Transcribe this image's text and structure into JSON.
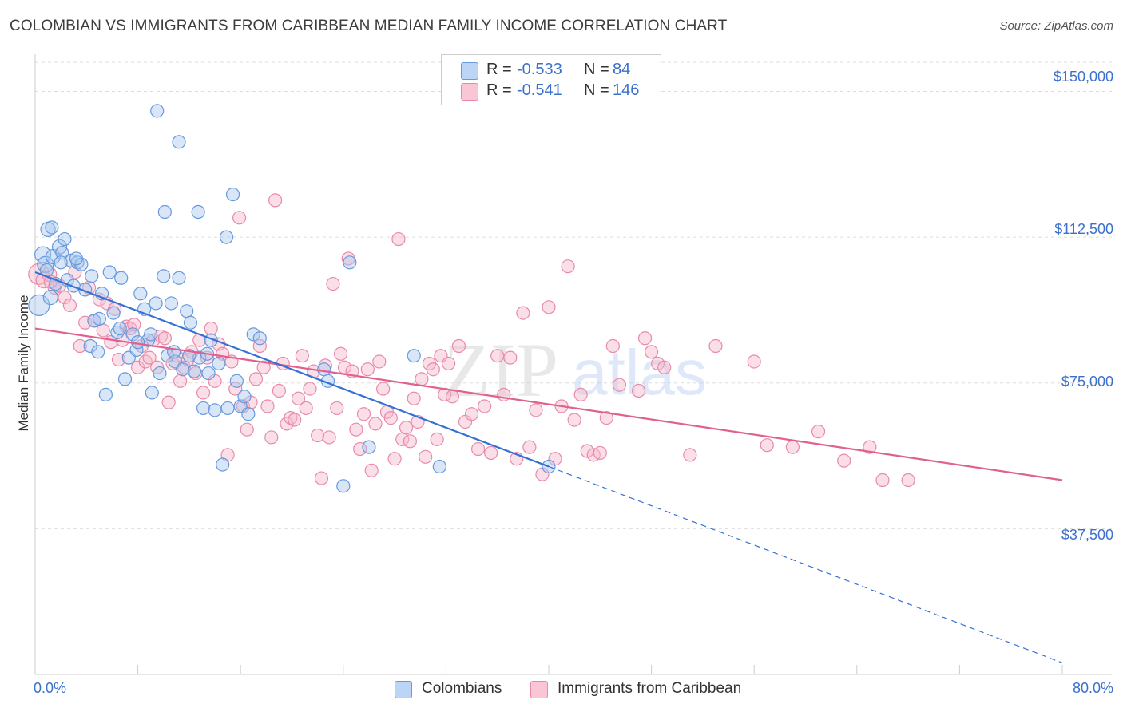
{
  "header": {
    "title": "COLOMBIAN VS IMMIGRANTS FROM CARIBBEAN MEDIAN FAMILY INCOME CORRELATION CHART",
    "source": "Source: ZipAtlas.com"
  },
  "legend": {
    "rows": [
      {
        "r_label": "R =",
        "r_value": "-0.533",
        "n_label": "N =",
        "n_value": "84"
      },
      {
        "r_label": "R =",
        "r_value": "-0.541",
        "n_label": "N =",
        "n_value": "146"
      }
    ]
  },
  "watermark": {
    "zip": "ZIP",
    "atlas": "atlas"
  },
  "colors": {
    "colombians_fill": "#a9c8f0",
    "colombians_stroke": "#6699dd",
    "colombians_line": "#3371d4",
    "caribbean_fill": "#f7b8cb",
    "caribbean_stroke": "#e88aa8",
    "caribbean_line": "#e06090",
    "axis_text": "#3b6fcc",
    "grid": "#dddddd"
  },
  "chart_data": {
    "type": "scatter",
    "title": "COLOMBIAN VS IMMIGRANTS FROM CARIBBEAN MEDIAN FAMILY INCOME CORRELATION CHART",
    "xlabel": "",
    "ylabel": "Median Family Income",
    "xlim": [
      0,
      80
    ],
    "ylim": [
      0,
      157500
    ],
    "x_tick_labels": [
      "0.0%",
      "80.0%"
    ],
    "y_ticks": [
      37500,
      75000,
      112500,
      150000
    ],
    "y_tick_labels": [
      "$37,500",
      "$75,000",
      "$112,500",
      "$150,000"
    ],
    "grid": true,
    "legend_position": "top-center",
    "series": [
      {
        "name": "Colombians",
        "r": -0.533,
        "n": 84,
        "trend": {
          "x0": 0,
          "y0": 103500,
          "x1": 40,
          "y1": 53500,
          "dashed_to_x": 80,
          "dashed_to_y": 3000
        },
        "points": [
          [
            0.3,
            95000,
            13
          ],
          [
            0.6,
            108000,
            10
          ],
          [
            0.8,
            105500,
            10
          ],
          [
            1.0,
            114500,
            9
          ],
          [
            1.2,
            97000,
            9
          ],
          [
            1.4,
            107500,
            9
          ],
          [
            1.6,
            100500,
            8
          ],
          [
            1.9,
            110000,
            9
          ],
          [
            2.1,
            108500,
            8
          ],
          [
            2.3,
            112000,
            8
          ],
          [
            2.5,
            101500,
            8
          ],
          [
            2.8,
            106500,
            8
          ],
          [
            3.0,
            100000,
            8
          ],
          [
            3.3,
            106000,
            8
          ],
          [
            3.6,
            105500,
            8
          ],
          [
            3.9,
            99000,
            8
          ],
          [
            4.3,
            84500,
            8
          ],
          [
            4.6,
            91000,
            8
          ],
          [
            4.9,
            83000,
            8
          ],
          [
            5.2,
            98000,
            8
          ],
          [
            5.5,
            72000,
            8
          ],
          [
            5.8,
            103500,
            8
          ],
          [
            6.1,
            93000,
            8
          ],
          [
            6.4,
            88000,
            8
          ],
          [
            6.7,
            102000,
            8
          ],
          [
            7.0,
            76000,
            8
          ],
          [
            7.3,
            81500,
            8
          ],
          [
            7.6,
            87500,
            8
          ],
          [
            7.9,
            83500,
            8
          ],
          [
            8.2,
            98000,
            8
          ],
          [
            8.5,
            94000,
            8
          ],
          [
            8.8,
            86000,
            8
          ],
          [
            9.1,
            72500,
            8
          ],
          [
            9.4,
            95500,
            8
          ],
          [
            9.7,
            77500,
            8
          ],
          [
            10.0,
            102500,
            8
          ],
          [
            10.3,
            82000,
            8
          ],
          [
            10.6,
            95500,
            8
          ],
          [
            10.9,
            80500,
            8
          ],
          [
            11.2,
            102000,
            8
          ],
          [
            11.5,
            78500,
            8
          ],
          [
            11.8,
            93500,
            8
          ],
          [
            12.1,
            90500,
            8
          ],
          [
            12.4,
            78000,
            8
          ],
          [
            12.8,
            81500,
            8
          ],
          [
            13.1,
            68500,
            8
          ],
          [
            13.4,
            82500,
            8
          ],
          [
            13.7,
            86000,
            8
          ],
          [
            14.0,
            68000,
            8
          ],
          [
            14.3,
            80000,
            8
          ],
          [
            14.6,
            54000,
            8
          ],
          [
            14.9,
            112500,
            8
          ],
          [
            9.5,
            145000,
            8
          ],
          [
            11.2,
            137000,
            8
          ],
          [
            10.1,
            119000,
            8
          ],
          [
            12.7,
            119000,
            8
          ],
          [
            15.4,
            123500,
            8
          ],
          [
            15.7,
            75500,
            8
          ],
          [
            16.0,
            69000,
            8
          ],
          [
            16.3,
            71500,
            8
          ],
          [
            16.6,
            67000,
            8
          ],
          [
            17.0,
            87500,
            8
          ],
          [
            17.5,
            86500,
            8
          ],
          [
            22.5,
            78500,
            8
          ],
          [
            22.8,
            75500,
            8
          ],
          [
            24.5,
            106000,
            8
          ],
          [
            24.0,
            48500,
            8
          ],
          [
            26.0,
            58500,
            8
          ],
          [
            29.5,
            82000,
            8
          ],
          [
            31.5,
            53500,
            8
          ],
          [
            2.0,
            106000,
            8
          ],
          [
            0.9,
            104000,
            8
          ],
          [
            1.3,
            115000,
            8
          ],
          [
            3.2,
            107000,
            8
          ],
          [
            4.4,
            102500,
            8
          ],
          [
            5.0,
            91500,
            8
          ],
          [
            6.6,
            89000,
            8
          ],
          [
            8.0,
            85500,
            8
          ],
          [
            9.0,
            87500,
            8
          ],
          [
            10.8,
            83000,
            8
          ],
          [
            12.0,
            82000,
            8
          ],
          [
            13.5,
            77500,
            8
          ],
          [
            15.0,
            68500,
            8
          ],
          [
            40.0,
            53500,
            8
          ]
        ]
      },
      {
        "name": "Immigrants from Caribbean",
        "r": -0.541,
        "n": 146,
        "trend": {
          "x0": 0,
          "y0": 89000,
          "x1": 80,
          "y1": 50000
        },
        "points": [
          [
            0.3,
            103000,
            13
          ],
          [
            0.7,
            101500,
            10
          ],
          [
            1.1,
            103000,
            9
          ],
          [
            1.5,
            99500,
            8
          ],
          [
            1.9,
            100000,
            8
          ],
          [
            2.3,
            97000,
            8
          ],
          [
            2.7,
            95000,
            8
          ],
          [
            3.1,
            103500,
            8
          ],
          [
            3.5,
            84500,
            8
          ],
          [
            3.9,
            90500,
            8
          ],
          [
            4.2,
            99500,
            8
          ],
          [
            4.6,
            91000,
            8
          ],
          [
            5.0,
            96500,
            8
          ],
          [
            5.3,
            88500,
            8
          ],
          [
            5.6,
            95500,
            8
          ],
          [
            5.9,
            85500,
            8
          ],
          [
            6.2,
            94000,
            8
          ],
          [
            6.5,
            81000,
            8
          ],
          [
            6.8,
            86000,
            8
          ],
          [
            7.1,
            89500,
            8
          ],
          [
            7.4,
            89000,
            8
          ],
          [
            7.7,
            90000,
            8
          ],
          [
            8.0,
            79000,
            8
          ],
          [
            8.3,
            84500,
            8
          ],
          [
            8.6,
            80500,
            8
          ],
          [
            8.9,
            81500,
            8
          ],
          [
            9.2,
            86000,
            8
          ],
          [
            9.5,
            79000,
            8
          ],
          [
            9.8,
            87000,
            8
          ],
          [
            10.1,
            86500,
            8
          ],
          [
            10.4,
            70000,
            8
          ],
          [
            10.7,
            80000,
            8
          ],
          [
            11.0,
            82000,
            8
          ],
          [
            11.3,
            75500,
            8
          ],
          [
            11.6,
            79000,
            8
          ],
          [
            11.9,
            81000,
            8
          ],
          [
            12.2,
            83000,
            8
          ],
          [
            12.5,
            77500,
            8
          ],
          [
            12.8,
            86000,
            8
          ],
          [
            13.1,
            72500,
            8
          ],
          [
            13.4,
            81500,
            8
          ],
          [
            13.7,
            89000,
            8
          ],
          [
            14.0,
            75500,
            8
          ],
          [
            14.3,
            85000,
            8
          ],
          [
            14.6,
            82500,
            8
          ],
          [
            15.0,
            56500,
            8
          ],
          [
            15.3,
            80500,
            8
          ],
          [
            15.6,
            73500,
            8
          ],
          [
            15.9,
            117500,
            8
          ],
          [
            16.2,
            69000,
            8
          ],
          [
            16.5,
            63000,
            8
          ],
          [
            16.8,
            70000,
            8
          ],
          [
            17.2,
            76000,
            8
          ],
          [
            17.5,
            84500,
            8
          ],
          [
            17.8,
            79000,
            8
          ],
          [
            18.1,
            69000,
            8
          ],
          [
            18.4,
            61000,
            8
          ],
          [
            18.7,
            122000,
            8
          ],
          [
            19.0,
            73000,
            8
          ],
          [
            19.3,
            80000,
            8
          ],
          [
            19.6,
            64500,
            8
          ],
          [
            19.9,
            66000,
            8
          ],
          [
            20.2,
            65500,
            8
          ],
          [
            20.5,
            71000,
            8
          ],
          [
            20.8,
            82000,
            8
          ],
          [
            21.1,
            68500,
            8
          ],
          [
            21.4,
            73500,
            8
          ],
          [
            21.7,
            78000,
            8
          ],
          [
            22.0,
            61500,
            8
          ],
          [
            22.3,
            50500,
            8
          ],
          [
            22.6,
            79500,
            8
          ],
          [
            22.9,
            61000,
            8
          ],
          [
            23.2,
            100500,
            8
          ],
          [
            23.5,
            68500,
            8
          ],
          [
            23.8,
            82500,
            8
          ],
          [
            24.1,
            79000,
            8
          ],
          [
            24.4,
            107000,
            8
          ],
          [
            24.7,
            78000,
            8
          ],
          [
            25.0,
            63000,
            8
          ],
          [
            25.3,
            58000,
            8
          ],
          [
            25.6,
            67000,
            8
          ],
          [
            25.9,
            78500,
            8
          ],
          [
            26.2,
            52500,
            8
          ],
          [
            26.5,
            64500,
            8
          ],
          [
            26.8,
            80500,
            8
          ],
          [
            27.1,
            73500,
            8
          ],
          [
            27.4,
            67500,
            8
          ],
          [
            27.7,
            66000,
            8
          ],
          [
            28.0,
            55500,
            8
          ],
          [
            28.3,
            112000,
            8
          ],
          [
            28.6,
            60500,
            8
          ],
          [
            28.9,
            63500,
            8
          ],
          [
            29.2,
            60000,
            8
          ],
          [
            29.5,
            71000,
            8
          ],
          [
            29.8,
            65000,
            8
          ],
          [
            30.1,
            76000,
            8
          ],
          [
            30.4,
            56000,
            8
          ],
          [
            30.7,
            80000,
            8
          ],
          [
            31.0,
            78500,
            8
          ],
          [
            31.3,
            60500,
            8
          ],
          [
            31.6,
            82000,
            8
          ],
          [
            31.9,
            72000,
            8
          ],
          [
            32.2,
            80000,
            8
          ],
          [
            32.5,
            71500,
            8
          ],
          [
            33.0,
            84500,
            8
          ],
          [
            33.5,
            65000,
            8
          ],
          [
            34.0,
            67000,
            8
          ],
          [
            34.5,
            58000,
            8
          ],
          [
            35.0,
            69000,
            8
          ],
          [
            35.5,
            57000,
            8
          ],
          [
            36.0,
            82000,
            8
          ],
          [
            36.5,
            72000,
            8
          ],
          [
            37.0,
            81500,
            8
          ],
          [
            37.5,
            55500,
            8
          ],
          [
            38.0,
            93000,
            8
          ],
          [
            38.5,
            58500,
            8
          ],
          [
            39.0,
            68000,
            8
          ],
          [
            39.5,
            51500,
            8
          ],
          [
            40.0,
            94500,
            8
          ],
          [
            40.5,
            55500,
            8
          ],
          [
            41.0,
            69000,
            8
          ],
          [
            41.5,
            105000,
            8
          ],
          [
            42.0,
            65500,
            8
          ],
          [
            42.5,
            72000,
            8
          ],
          [
            43.0,
            57500,
            8
          ],
          [
            43.5,
            56500,
            8
          ],
          [
            44.0,
            57000,
            8
          ],
          [
            44.5,
            66000,
            8
          ],
          [
            45.0,
            84500,
            8
          ],
          [
            45.5,
            74500,
            8
          ],
          [
            47.0,
            73000,
            8
          ],
          [
            47.5,
            86500,
            8
          ],
          [
            48.0,
            83000,
            8
          ],
          [
            48.5,
            80000,
            8
          ],
          [
            49.0,
            79000,
            8
          ],
          [
            51.0,
            56500,
            8
          ],
          [
            53.0,
            84500,
            8
          ],
          [
            56.0,
            80500,
            8
          ],
          [
            57.0,
            59000,
            8
          ],
          [
            59.0,
            58500,
            8
          ],
          [
            61.0,
            62500,
            8
          ],
          [
            63.0,
            55000,
            8
          ],
          [
            65.0,
            58500,
            8
          ],
          [
            66.0,
            50000,
            8
          ],
          [
            68.0,
            50000,
            8
          ],
          [
            1.2,
            101000,
            8
          ]
        ]
      }
    ]
  }
}
